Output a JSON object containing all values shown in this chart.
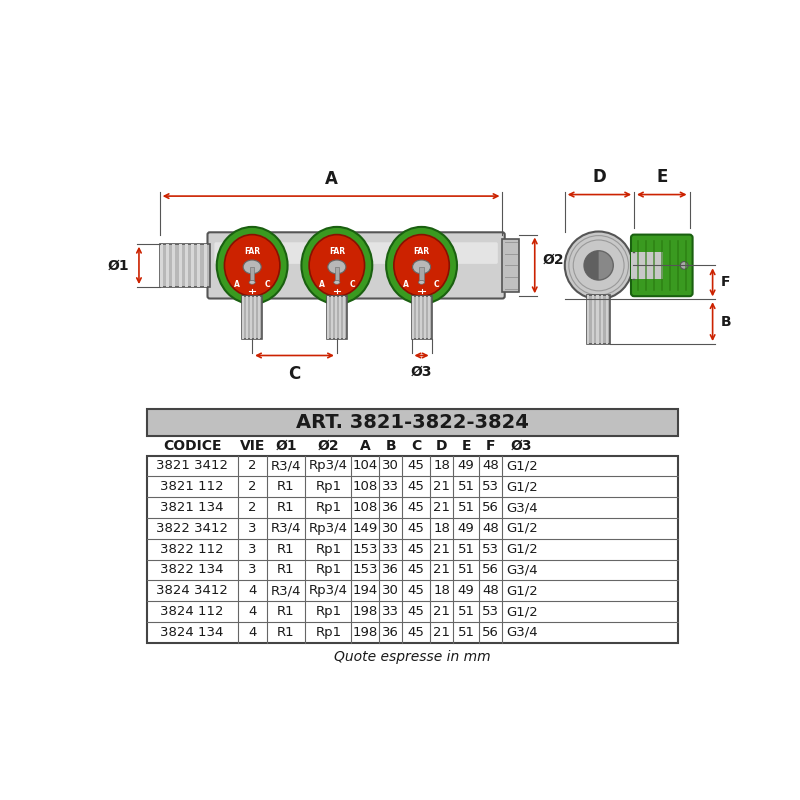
{
  "title": "ART. 3821-3822-3824",
  "table_headers": [
    "CODICE",
    "VIE",
    "Ø1",
    "Ø2",
    "A",
    "B",
    "C",
    "D",
    "E",
    "F",
    "Ø3"
  ],
  "table_rows": [
    [
      "3821 3412",
      "2",
      "R3/4",
      "Rp3/4",
      "104",
      "30",
      "45",
      "18",
      "49",
      "48",
      "G1/2"
    ],
    [
      "3821 112",
      "2",
      "R1",
      "Rp1",
      "108",
      "33",
      "45",
      "21",
      "51",
      "53",
      "G1/2"
    ],
    [
      "3821 134",
      "2",
      "R1",
      "Rp1",
      "108",
      "36",
      "45",
      "21",
      "51",
      "56",
      "G3/4"
    ],
    [
      "3822 3412",
      "3",
      "R3/4",
      "Rp3/4",
      "149",
      "30",
      "45",
      "18",
      "49",
      "48",
      "G1/2"
    ],
    [
      "3822 112",
      "3",
      "R1",
      "Rp1",
      "153",
      "33",
      "45",
      "21",
      "51",
      "53",
      "G1/2"
    ],
    [
      "3822 134",
      "3",
      "R1",
      "Rp1",
      "153",
      "36",
      "45",
      "21",
      "51",
      "56",
      "G3/4"
    ],
    [
      "3824 3412",
      "4",
      "R3/4",
      "Rp3/4",
      "194",
      "30",
      "45",
      "18",
      "49",
      "48",
      "G1/2"
    ],
    [
      "3824 112",
      "4",
      "R1",
      "Rp1",
      "198",
      "33",
      "45",
      "21",
      "51",
      "53",
      "G1/2"
    ],
    [
      "3824 134",
      "4",
      "R1",
      "Rp1",
      "198",
      "36",
      "45",
      "21",
      "51",
      "56",
      "G3/4"
    ]
  ],
  "footnote": "Quote espresse in mm",
  "bg_color": "#ffffff",
  "text_color": "#1a1a1a",
  "arrow_color": "#cc2200",
  "body_color": "#c8c8c8",
  "body_light": "#e0e0e0",
  "body_dark": "#a0a0a0",
  "green_cap": "#3a9a20",
  "green_dark": "#1a6010",
  "red_valve": "#cc2200",
  "red_dark": "#991100"
}
